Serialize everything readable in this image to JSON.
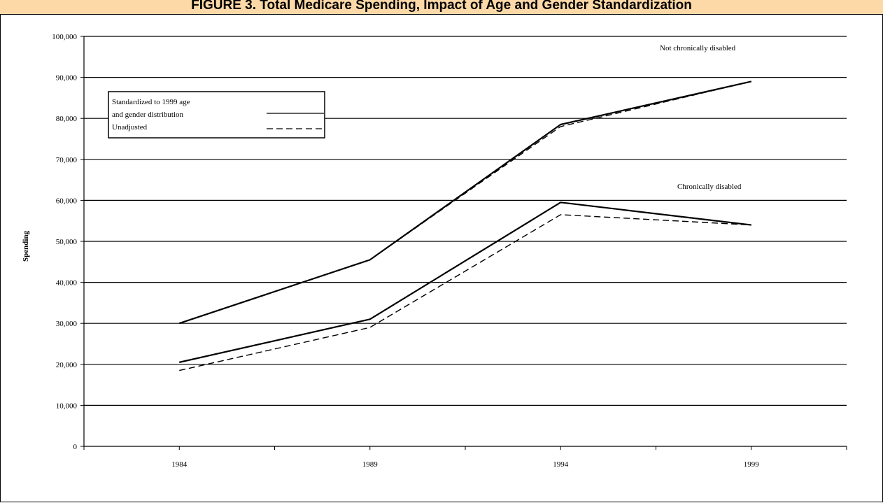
{
  "page": {
    "title": "FIGURE 3. Total Medicare Spending, Impact of Age and Gender Standardization",
    "accent_color": "#fdd9a8"
  },
  "chart_data": {
    "type": "line",
    "title": "FIGURE 3. Total Medicare Spending, Impact of Age and Gender Standardization",
    "xlabel": "",
    "ylabel": "Spending",
    "categories": [
      "1984",
      "1989",
      "1994",
      "1999"
    ],
    "ylim": [
      0,
      100000
    ],
    "y_ticks": [
      "0",
      "10,000",
      "20,000",
      "30,000",
      "40,000",
      "50,000",
      "60,000",
      "70,000",
      "80,000",
      "90,000",
      "100,000"
    ],
    "grid": true,
    "series": [
      {
        "group": "Not chronically disabled",
        "style": "solid",
        "values": [
          30000,
          45500,
          78500,
          89000
        ]
      },
      {
        "group": "Not chronically disabled",
        "style": "dashed",
        "values": [
          30000,
          45500,
          78000,
          89000
        ]
      },
      {
        "group": "Chronically disabled",
        "style": "solid",
        "values": [
          20500,
          31000,
          59500,
          54000
        ]
      },
      {
        "group": "Chronically disabled",
        "style": "dashed",
        "values": [
          18500,
          29000,
          56500,
          54000
        ]
      }
    ],
    "legend": {
      "placement": "top-left",
      "entries": [
        {
          "line1": "Standardized to 1999 age",
          "line2": "and gender distribution",
          "style": "solid"
        },
        {
          "line1": "Unadjusted",
          "line2": "",
          "style": "dashed"
        }
      ]
    },
    "annotations": [
      "Not chronically disabled",
      "Chronically disabled"
    ]
  }
}
